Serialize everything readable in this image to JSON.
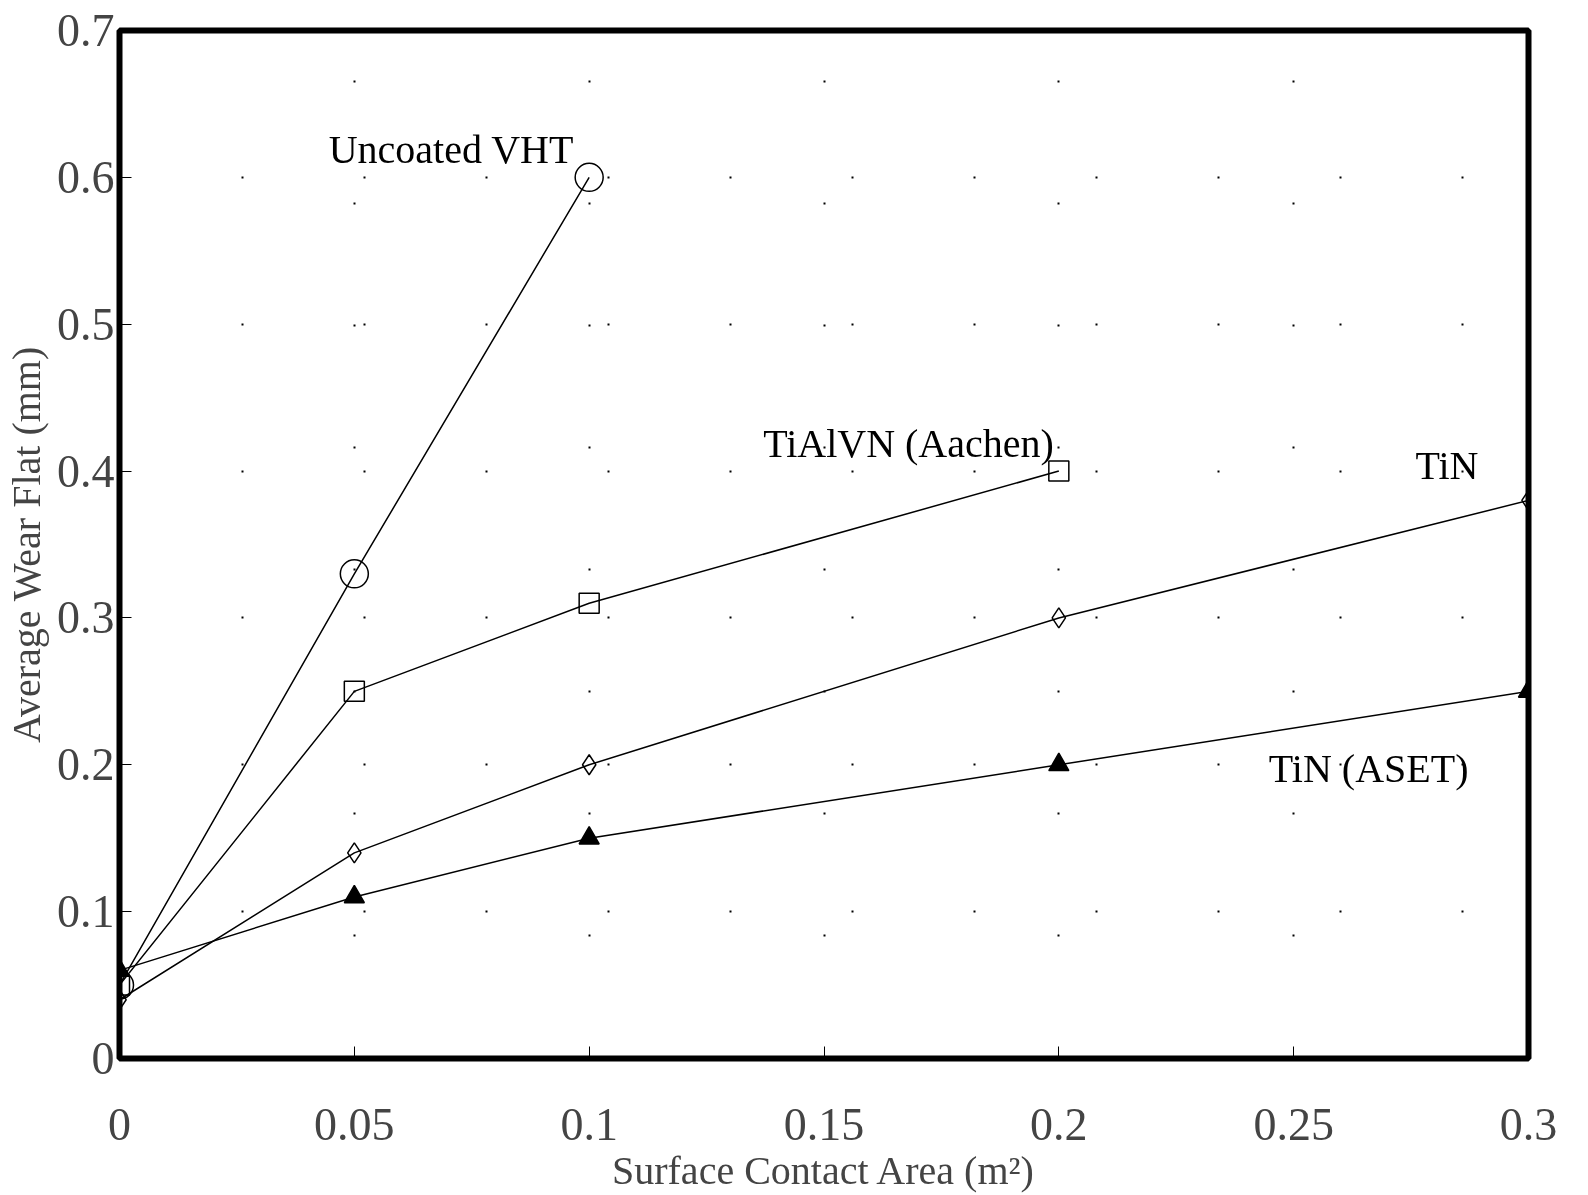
{
  "chart_data": {
    "type": "line",
    "xlabel": "Surface Contact Area (m²)",
    "ylabel": "Average Wear Flat (mm)",
    "xlim": [
      0,
      0.3
    ],
    "ylim": [
      0,
      0.7
    ],
    "xticks": [
      0,
      0.05,
      0.1,
      0.15,
      0.2,
      0.25,
      0.3
    ],
    "yticks": [
      0,
      0.1,
      0.2,
      0.3,
      0.4,
      0.5,
      0.6,
      0.7
    ],
    "grid": true,
    "series": [
      {
        "name": "Uncoated VHT",
        "color": "#000000",
        "marker": "circle",
        "x": [
          0,
          0.05,
          0.1
        ],
        "values": [
          0.05,
          0.33,
          0.6
        ]
      },
      {
        "name": "TiAlVN (Aachen)",
        "color": "#000000",
        "marker": "square",
        "x": [
          0,
          0.05,
          0.1,
          0.2
        ],
        "values": [
          0.05,
          0.25,
          0.31,
          0.4
        ]
      },
      {
        "name": "TiN",
        "color": "#000000",
        "marker": "diamond",
        "x": [
          0,
          0.05,
          0.1,
          0.2,
          0.3
        ],
        "values": [
          0.04,
          0.14,
          0.2,
          0.3,
          0.38
        ]
      },
      {
        "name": "TiN (ASET)",
        "color": "#000000",
        "marker": "triangle",
        "x": [
          0,
          0.05,
          0.1,
          0.2,
          0.3
        ],
        "values": [
          0.06,
          0.11,
          0.15,
          0.2,
          0.25
        ]
      }
    ]
  }
}
